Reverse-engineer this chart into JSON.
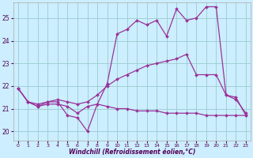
{
  "bg_color": "#cceeff",
  "grid_color": "#99cccc",
  "line_color": "#993399",
  "xlabel": "Windchill (Refroidissement éolien,°C)",
  "xlim": [
    -0.5,
    23.5
  ],
  "ylim": [
    19.6,
    25.7
  ],
  "yticks": [
    20,
    21,
    22,
    23,
    24,
    25
  ],
  "xticks": [
    0,
    1,
    2,
    3,
    4,
    5,
    6,
    7,
    8,
    9,
    10,
    11,
    12,
    13,
    14,
    15,
    16,
    17,
    18,
    19,
    20,
    21,
    22,
    23
  ],
  "series1_x": [
    0,
    1,
    2,
    3,
    4,
    5,
    6,
    7,
    8,
    9,
    10,
    11,
    12,
    13,
    14,
    15,
    16,
    17,
    18,
    19,
    20,
    21,
    22,
    23
  ],
  "series1_y": [
    21.9,
    21.3,
    21.1,
    21.3,
    21.3,
    20.7,
    20.6,
    20.0,
    21.2,
    22.1,
    24.3,
    24.5,
    24.9,
    24.7,
    24.9,
    24.2,
    25.4,
    24.9,
    25.0,
    25.5,
    25.5,
    21.6,
    21.4,
    20.8
  ],
  "series2_x": [
    0,
    1,
    2,
    3,
    4,
    5,
    6,
    7,
    8,
    9,
    10,
    11,
    12,
    13,
    14,
    15,
    16,
    17,
    18,
    19,
    20,
    21,
    22,
    23
  ],
  "series2_y": [
    21.9,
    21.3,
    21.2,
    21.3,
    21.4,
    21.3,
    21.2,
    21.3,
    21.6,
    22.0,
    22.3,
    22.5,
    22.7,
    22.9,
    23.0,
    23.1,
    23.2,
    23.4,
    22.5,
    22.5,
    22.5,
    21.6,
    21.5,
    20.7
  ],
  "series3_x": [
    0,
    1,
    2,
    3,
    4,
    5,
    6,
    7,
    8,
    9,
    10,
    11,
    12,
    13,
    14,
    15,
    16,
    17,
    18,
    19,
    20,
    21,
    22,
    23
  ],
  "series3_y": [
    21.9,
    21.3,
    21.1,
    21.2,
    21.2,
    21.1,
    20.8,
    21.1,
    21.2,
    21.1,
    21.0,
    21.0,
    20.9,
    20.9,
    20.9,
    20.8,
    20.8,
    20.8,
    20.8,
    20.7,
    20.7,
    20.7,
    20.7,
    20.7
  ]
}
